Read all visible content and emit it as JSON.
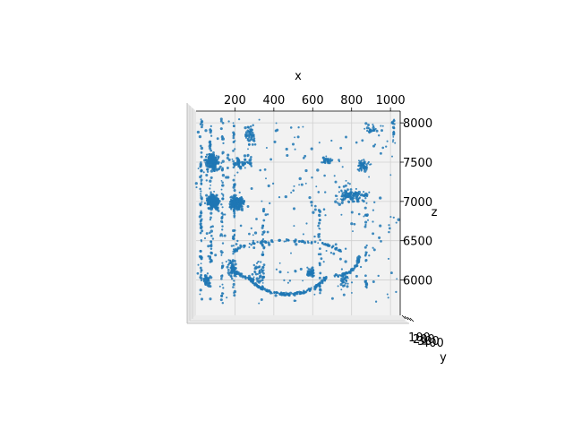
{
  "chart_data": {
    "type": "scatter",
    "projection": "3d",
    "view": "top-down",
    "title": "",
    "xlabel": "x",
    "ylabel": "y",
    "zlabel": "z",
    "xlim": [
      0,
      1050
    ],
    "zlim": [
      5550,
      8150
    ],
    "x_ticks": [
      200,
      400,
      600,
      800,
      1000
    ],
    "z_ticks": [
      6000,
      6500,
      7000,
      7500,
      8000
    ],
    "y_tick_labels": [
      "100",
      "200",
      "300",
      "400"
    ],
    "grid": true,
    "marker_color": "#1f77b4",
    "pane_color": "#f2f2f2",
    "clusters": [
      {
        "x": [
          40,
          130
        ],
        "z": [
          7350,
          7650
        ],
        "n": 180
      },
      {
        "x": [
          40,
          130
        ],
        "z": [
          6850,
          7150
        ],
        "n": 170
      },
      {
        "x": [
          150,
          260
        ],
        "z": [
          6850,
          7100
        ],
        "n": 190
      },
      {
        "x": [
          160,
          310
        ],
        "z": [
          7400,
          7600
        ],
        "n": 60
      },
      {
        "x": [
          240,
          320
        ],
        "z": [
          7700,
          8000
        ],
        "n": 50
      },
      {
        "x": [
          30,
          80
        ],
        "z": [
          5900,
          6100
        ],
        "n": 40
      },
      {
        "x": [
          150,
          220
        ],
        "z": [
          5950,
          6300
        ],
        "n": 45
      },
      {
        "x": [
          280,
          360
        ],
        "z": [
          5950,
          6300
        ],
        "n": 30
      },
      {
        "x": [
          630,
          720
        ],
        "z": [
          7450,
          7600
        ],
        "n": 30
      },
      {
        "x": [
          690,
          900
        ],
        "z": [
          6950,
          7200
        ],
        "n": 110
      },
      {
        "x": [
          820,
          900
        ],
        "z": [
          7350,
          7550
        ],
        "n": 50
      },
      {
        "x": [
          850,
          950
        ],
        "z": [
          7850,
          8000
        ],
        "n": 25
      },
      {
        "x": [
          560,
          620
        ],
        "z": [
          6000,
          6200
        ],
        "n": 40
      },
      {
        "x": [
          720,
          800
        ],
        "z": [
          5850,
          6150
        ],
        "n": 35
      }
    ],
    "streaks": [
      {
        "x": [
          20,
          30
        ],
        "z": [
          5750,
          8050
        ],
        "n": 70
      },
      {
        "x": [
          70,
          80
        ],
        "z": [
          5800,
          8000
        ],
        "n": 55
      },
      {
        "x": [
          130,
          140
        ],
        "z": [
          5700,
          8050
        ],
        "n": 60
      },
      {
        "x": [
          190,
          200
        ],
        "z": [
          5800,
          8000
        ],
        "n": 50
      },
      {
        "x": [
          340,
          350
        ],
        "z": [
          5850,
          6900
        ],
        "n": 30
      },
      {
        "x": [
          630,
          640
        ],
        "z": [
          5800,
          6900
        ],
        "n": 30
      },
      {
        "x": [
          870,
          880
        ],
        "z": [
          5900,
          7000
        ],
        "n": 25
      },
      {
        "x": [
          1010,
          1020
        ],
        "z": [
          7750,
          8050
        ],
        "n": 15
      }
    ],
    "arcs": [
      {
        "cx": 470,
        "cz": 6150,
        "rx": 210,
        "rz": 330,
        "a0": 200,
        "a1": 340,
        "n": 160
      },
      {
        "cx": 470,
        "cz": 6330,
        "rx": 280,
        "rz": 170,
        "a0": 10,
        "a1": 170,
        "n": 90
      },
      {
        "cx": 330,
        "cz": 6250,
        "rx": 150,
        "rz": 250,
        "a0": 180,
        "a1": 270,
        "n": 50
      },
      {
        "cx": 710,
        "cz": 6300,
        "rx": 130,
        "rz": 250,
        "a0": 270,
        "a1": 360,
        "n": 50
      }
    ],
    "sparse_points": 260
  }
}
